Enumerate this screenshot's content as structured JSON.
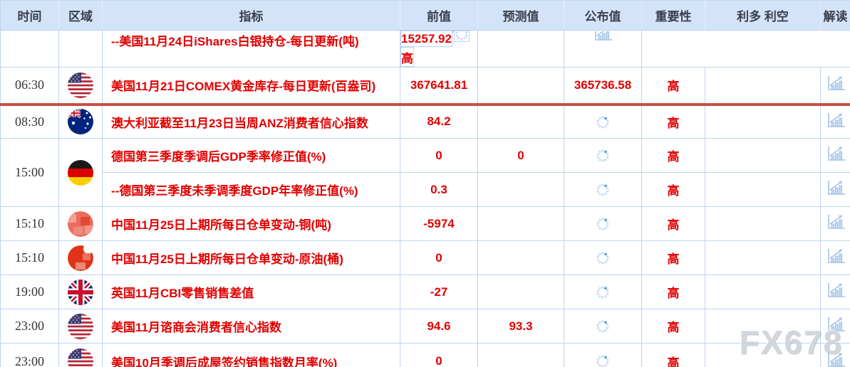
{
  "table": {
    "columns": [
      {
        "key": "time",
        "label": "时间"
      },
      {
        "key": "region",
        "label": "区域"
      },
      {
        "key": "indicator",
        "label": "指标"
      },
      {
        "key": "previous",
        "label": "前值"
      },
      {
        "key": "forecast",
        "label": "预测值"
      },
      {
        "key": "published",
        "label": "公布值"
      },
      {
        "key": "importance",
        "label": "重要性"
      },
      {
        "key": "bulls-bears",
        "label": "利多 利空"
      },
      {
        "key": "interpret",
        "label": "解读"
      }
    ],
    "rows": [
      {
        "time": "",
        "flag": "none",
        "indicator": "--美国11月24日iShares白银持仓-每日更新(吨)",
        "previous": "15257.92",
        "forecast": "",
        "published": "",
        "published_pending": true,
        "importance": "高",
        "clipped": true
      },
      {
        "time": "06:30",
        "flag": "us",
        "indicator": "美国11月21日COMEX黄金库存-每日更新(百盎司)",
        "previous": "367641.81",
        "forecast": "",
        "published": "365736.58",
        "published_pending": false,
        "importance": "高",
        "divider_after": true
      },
      {
        "time": "08:30",
        "flag": "au",
        "indicator": "澳大利亚截至11月23日当周ANZ消费者信心指数",
        "previous": "84.2",
        "forecast": "",
        "published": "",
        "published_pending": true,
        "importance": "高"
      },
      {
        "time": "15:00",
        "flag": "de",
        "rowspan": 2,
        "indicator": "德国第三季度季调后GDP季率修正值(%)",
        "previous": "0",
        "forecast": "0",
        "published": "",
        "published_pending": true,
        "importance": "高"
      },
      {
        "group_continued": true,
        "indicator": "--德国第三季度未季调季度GDP年率修正值(%)",
        "previous": "0.3",
        "forecast": "",
        "published": "",
        "published_pending": true,
        "importance": "高"
      },
      {
        "time": "15:10",
        "flag": "cn-a",
        "indicator": "中国11月25日上期所每日仓单变动-铜(吨)",
        "previous": "-5974",
        "forecast": "",
        "published": "",
        "published_pending": true,
        "importance": "高"
      },
      {
        "time": "15:10",
        "flag": "cn-b",
        "indicator": "中国11月25日上期所每日仓单变动-原油(桶)",
        "previous": "0",
        "forecast": "",
        "published": "",
        "published_pending": true,
        "importance": "高"
      },
      {
        "time": "19:00",
        "flag": "gb",
        "indicator": "英国11月CBI零售销售差值",
        "previous": "-27",
        "forecast": "",
        "published": "",
        "published_pending": true,
        "importance": "高"
      },
      {
        "time": "23:00",
        "flag": "us",
        "indicator": "美国11月谘商会消费者信心指数",
        "previous": "94.6",
        "forecast": "93.3",
        "published": "",
        "published_pending": true,
        "importance": "高"
      },
      {
        "time": "23:00",
        "flag": "us",
        "indicator": "美国10月季调后成屋签约销售指数月率(%)",
        "previous": "0",
        "forecast": "",
        "published": "",
        "published_pending": true,
        "importance": "高"
      }
    ]
  },
  "icons": {
    "pending": "loading-spinner-icon",
    "interpret": "bar-chart-icon",
    "flags": [
      "us-flag-icon",
      "australia-flag-icon",
      "germany-flag-icon",
      "china-flag-blurred-icon",
      "uk-flag-icon"
    ]
  },
  "watermark": "FX678",
  "colors": {
    "accent_red": "#e10000",
    "divider_red": "#c75044",
    "header_bg": "#d4e4f8",
    "header_text": "#39404d",
    "border_blue": "#bcd4f2",
    "icon_blue": "#a3c1e6",
    "spinner_light": "#c9ddf5",
    "spinner_dark": "#5f9cda"
  }
}
